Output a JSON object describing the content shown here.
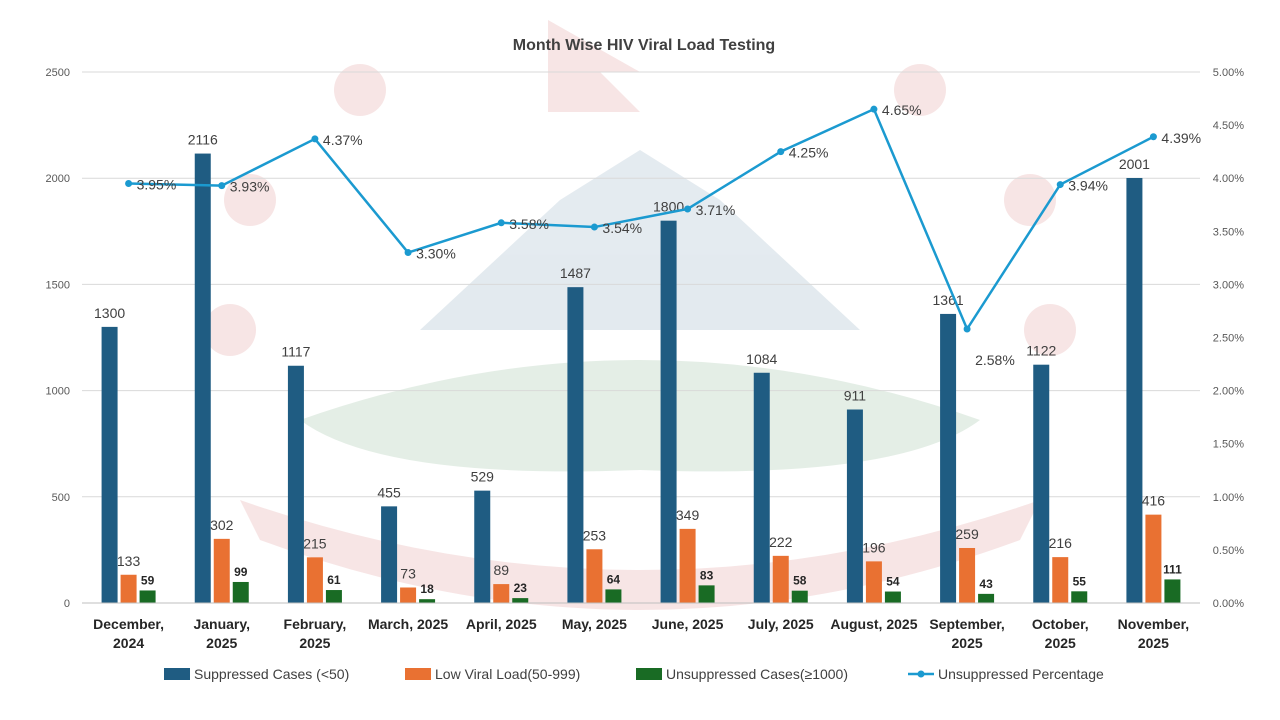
{
  "chart_data": {
    "type": "bar",
    "title": "Month Wise HIV Viral Load Testing",
    "categories": [
      [
        "December,",
        "2024"
      ],
      [
        "January,",
        "2025"
      ],
      [
        "February,",
        "2025"
      ],
      [
        "March, 2025"
      ],
      [
        "April, 2025"
      ],
      [
        "May, 2025"
      ],
      [
        "June, 2025"
      ],
      [
        "July, 2025"
      ],
      [
        "August, 2025"
      ],
      [
        "September,",
        "2025"
      ],
      [
        "October,",
        "2025"
      ],
      [
        "November,",
        "2025"
      ]
    ],
    "ylim": [
      0,
      2500
    ],
    "y_ticks": [
      "0",
      "500",
      "1000",
      "1500",
      "2000",
      "2500"
    ],
    "y2lim": [
      0,
      5
    ],
    "y2_ticks": [
      "0.00%",
      "0.50%",
      "1.00%",
      "1.50%",
      "2.00%",
      "2.50%",
      "3.00%",
      "3.50%",
      "4.00%",
      "4.50%",
      "5.00%"
    ],
    "grid": true,
    "legend_position": "bottom",
    "series": [
      {
        "name": "Suppressed Cases (<50)",
        "type": "bar",
        "color": "#1F5C82",
        "values": [
          1300,
          2116,
          1117,
          455,
          529,
          1487,
          1800,
          1084,
          911,
          1361,
          1122,
          2001
        ],
        "labels": [
          "1300",
          "2116",
          "1117",
          "455",
          "529",
          "1487",
          "1800",
          "1084",
          "911",
          "1361",
          "1122",
          "2001"
        ]
      },
      {
        "name": "Low Viral Load(50-999)",
        "type": "bar",
        "color": "#E97132",
        "values": [
          133,
          302,
          215,
          73,
          89,
          253,
          349,
          222,
          196,
          259,
          216,
          416
        ],
        "labels": [
          "133",
          "302",
          "215",
          "73",
          "89",
          "253",
          "349",
          "222",
          "196",
          "259",
          "216",
          "416"
        ]
      },
      {
        "name": "Unsuppressed Cases(≥1000)",
        "type": "bar",
        "color": "#196B24",
        "values": [
          59,
          99,
          61,
          18,
          23,
          64,
          83,
          58,
          54,
          43,
          55,
          111
        ],
        "labels": [
          "59",
          "99",
          "61",
          "18",
          "23",
          "64",
          "83",
          "58",
          "54",
          "43",
          "55",
          "111"
        ]
      },
      {
        "name": "Unsuppressed Percentage",
        "type": "line",
        "axis": "right",
        "color": "#1B9AD0",
        "values": [
          3.95,
          3.93,
          4.37,
          3.3,
          3.58,
          3.54,
          3.71,
          4.25,
          4.65,
          2.58,
          3.94,
          4.39
        ],
        "labels": [
          "3.95%",
          "3.93%",
          "4.37%",
          "3.30%",
          "3.58%",
          "3.54%",
          "3.71%",
          "4.25%",
          "4.65%",
          "2.58%",
          "3.94%",
          "4.39%"
        ]
      }
    ]
  }
}
